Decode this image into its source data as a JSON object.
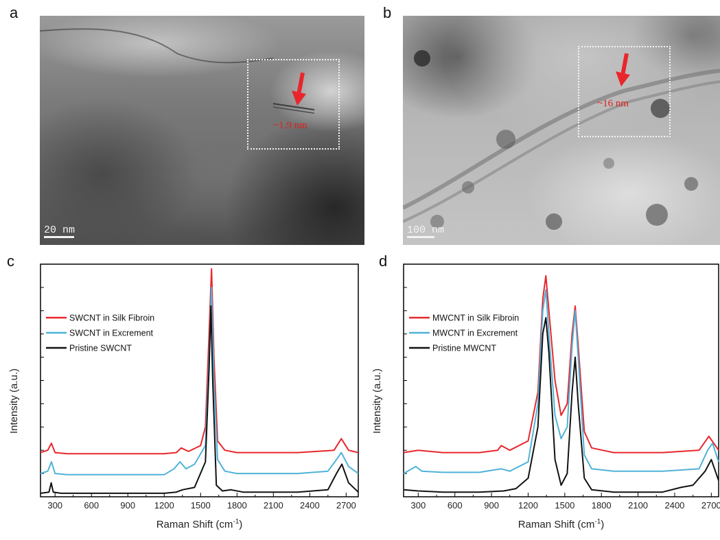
{
  "panels": {
    "a": {
      "letter": "a",
      "scalebar": "20 nm",
      "measurement": "~1.9 nm"
    },
    "b": {
      "letter": "b",
      "scalebar": "100 nm",
      "measurement": "~16 nm"
    },
    "c": {
      "letter": "c"
    },
    "d": {
      "letter": "d"
    }
  },
  "colors": {
    "red": "#e8262b",
    "blue": "#4fb2d8",
    "black": "#111111",
    "arrow": "#e8262b"
  },
  "chart_data": [
    {
      "type": "line",
      "panel": "c",
      "xlabel": "Raman Shift (cm-1)",
      "xlabel_main": "Raman Shift (cm",
      "xlabel_sup": "-1",
      "xlabel_close": ")",
      "ylabel": "Intensity (a.u.)",
      "xlim": [
        180,
        2800
      ],
      "ylim": [
        0,
        100
      ],
      "xticks": [
        300,
        600,
        900,
        1200,
        1500,
        1800,
        2100,
        2400,
        2700
      ],
      "xtick_labels": [
        "300",
        "600",
        "900",
        "1200",
        "1500",
        "1800",
        "2100",
        "2400",
        "2700"
      ],
      "legend_position": "top-left",
      "series": [
        {
          "name": "SWCNT in Silk Fibroin",
          "color": "#e8262b",
          "x": [
            180,
            240,
            270,
            300,
            400,
            600,
            900,
            1200,
            1300,
            1340,
            1400,
            1500,
            1540,
            1570,
            1590,
            1610,
            1640,
            1700,
            1800,
            2000,
            2300,
            2600,
            2660,
            2720,
            2800
          ],
          "y": [
            19,
            20,
            23,
            19,
            18.5,
            18.5,
            18.5,
            18.5,
            19,
            21,
            19.5,
            22,
            30,
            70,
            98,
            60,
            24,
            20,
            19,
            19,
            19,
            20,
            25,
            20,
            19
          ]
        },
        {
          "name": "SWCNT in Excrement",
          "color": "#4fb2d8",
          "x": [
            180,
            240,
            270,
            300,
            400,
            600,
            900,
            1200,
            1280,
            1330,
            1380,
            1450,
            1540,
            1570,
            1590,
            1610,
            1640,
            1700,
            1800,
            2000,
            2300,
            2550,
            2620,
            2660,
            2720,
            2800
          ],
          "y": [
            10,
            11,
            15,
            10,
            9.5,
            9.5,
            9.5,
            9.5,
            12,
            15,
            12,
            14,
            22,
            60,
            90,
            50,
            16,
            11,
            10,
            10,
            10,
            11,
            16,
            19,
            13,
            10
          ]
        },
        {
          "name": "Pristine SWCNT",
          "color": "#111111",
          "x": [
            180,
            250,
            268,
            285,
            350,
            600,
            900,
            1200,
            1300,
            1350,
            1450,
            1540,
            1570,
            1585,
            1600,
            1630,
            1680,
            1750,
            1850,
            2000,
            2300,
            2550,
            2620,
            2665,
            2720,
            2800
          ],
          "y": [
            1.5,
            2,
            6,
            2,
            1.5,
            1.5,
            1.5,
            1.5,
            2,
            3,
            4,
            15,
            55,
            82,
            50,
            5,
            2.5,
            3,
            2,
            2,
            2,
            3,
            10,
            14,
            6,
            2
          ]
        }
      ]
    },
    {
      "type": "line",
      "panel": "d",
      "xlabel": "Raman Shift (cm-1)",
      "xlabel_main": "Raman Shift (cm",
      "xlabel_sup": "-1",
      "xlabel_close": ")",
      "ylabel": "Intensity (a.u.)",
      "xlim": [
        180,
        2760
      ],
      "ylim": [
        0,
        100
      ],
      "xticks": [
        300,
        600,
        900,
        1200,
        1500,
        1800,
        2100,
        2400,
        2700
      ],
      "xtick_labels": [
        "300",
        "600",
        "900",
        "1200",
        "1500",
        "1800",
        "2100",
        "2400",
        "2700"
      ],
      "legend_position": "top-left",
      "series": [
        {
          "name": "MWCNT in Silk Fibroin",
          "color": "#e8262b",
          "x": [
            180,
            300,
            500,
            800,
            950,
            980,
            1050,
            1200,
            1280,
            1320,
            1345,
            1370,
            1420,
            1470,
            1520,
            1560,
            1585,
            1610,
            1660,
            1720,
            1900,
            2300,
            2600,
            2680,
            2720,
            2760
          ],
          "y": [
            19,
            20,
            19,
            19,
            20,
            22,
            20,
            24,
            45,
            85,
            95,
            80,
            50,
            35,
            40,
            70,
            82,
            65,
            28,
            21,
            19,
            19,
            20,
            26,
            23,
            20
          ]
        },
        {
          "name": "MWCNT in Excrement",
          "color": "#4fb2d8",
          "x": [
            180,
            280,
            330,
            500,
            800,
            980,
            1050,
            1200,
            1280,
            1320,
            1345,
            1370,
            1420,
            1470,
            1520,
            1560,
            1585,
            1610,
            1660,
            1720,
            1900,
            2300,
            2600,
            2670,
            2710,
            2760
          ],
          "y": [
            10,
            13,
            11,
            10.5,
            10.5,
            12,
            11,
            15,
            40,
            80,
            89,
            70,
            35,
            25,
            30,
            65,
            80,
            60,
            18,
            12,
            11,
            11,
            12,
            20,
            23,
            15
          ]
        },
        {
          "name": "Pristine MWCNT",
          "color": "#111111",
          "x": [
            180,
            300,
            500,
            800,
            1000,
            1100,
            1200,
            1280,
            1320,
            1345,
            1370,
            1420,
            1470,
            1520,
            1560,
            1585,
            1610,
            1660,
            1720,
            1900,
            2300,
            2450,
            2550,
            2650,
            2700,
            2760
          ],
          "y": [
            3,
            2.5,
            2,
            2,
            2.5,
            3.5,
            8,
            30,
            70,
            77,
            62,
            16,
            5,
            10,
            45,
            60,
            40,
            8,
            3,
            2,
            2,
            4,
            5,
            11,
            16,
            7
          ]
        }
      ]
    }
  ]
}
